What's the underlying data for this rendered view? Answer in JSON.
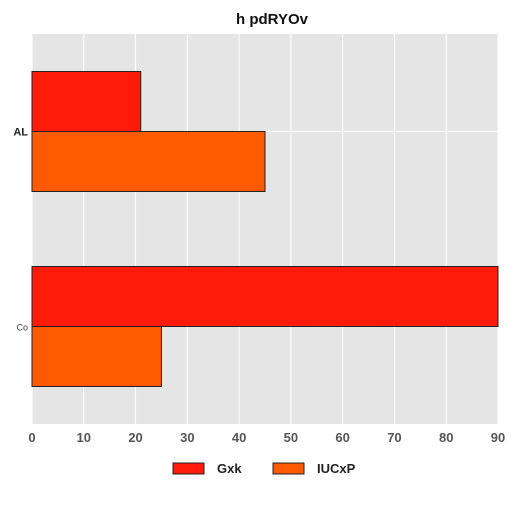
{
  "chart_data": {
    "type": "bar",
    "orientation": "horizontal",
    "title": "h pdRYOv",
    "xlabel": "",
    "ylabel": "",
    "categories": [
      "AL",
      "Co"
    ],
    "series": [
      {
        "name": "Gxk",
        "color": "#ff1a0a",
        "values": [
          21,
          90
        ]
      },
      {
        "name": "IUCxP",
        "color": "#ff5a00",
        "values": [
          45,
          25
        ]
      }
    ],
    "xlim": [
      0,
      90
    ],
    "xticks": [
      0,
      10,
      20,
      30,
      40,
      50,
      60,
      70,
      80,
      90
    ],
    "grid": true,
    "legend": "bottom",
    "plot_background": "#e5e5e5"
  }
}
